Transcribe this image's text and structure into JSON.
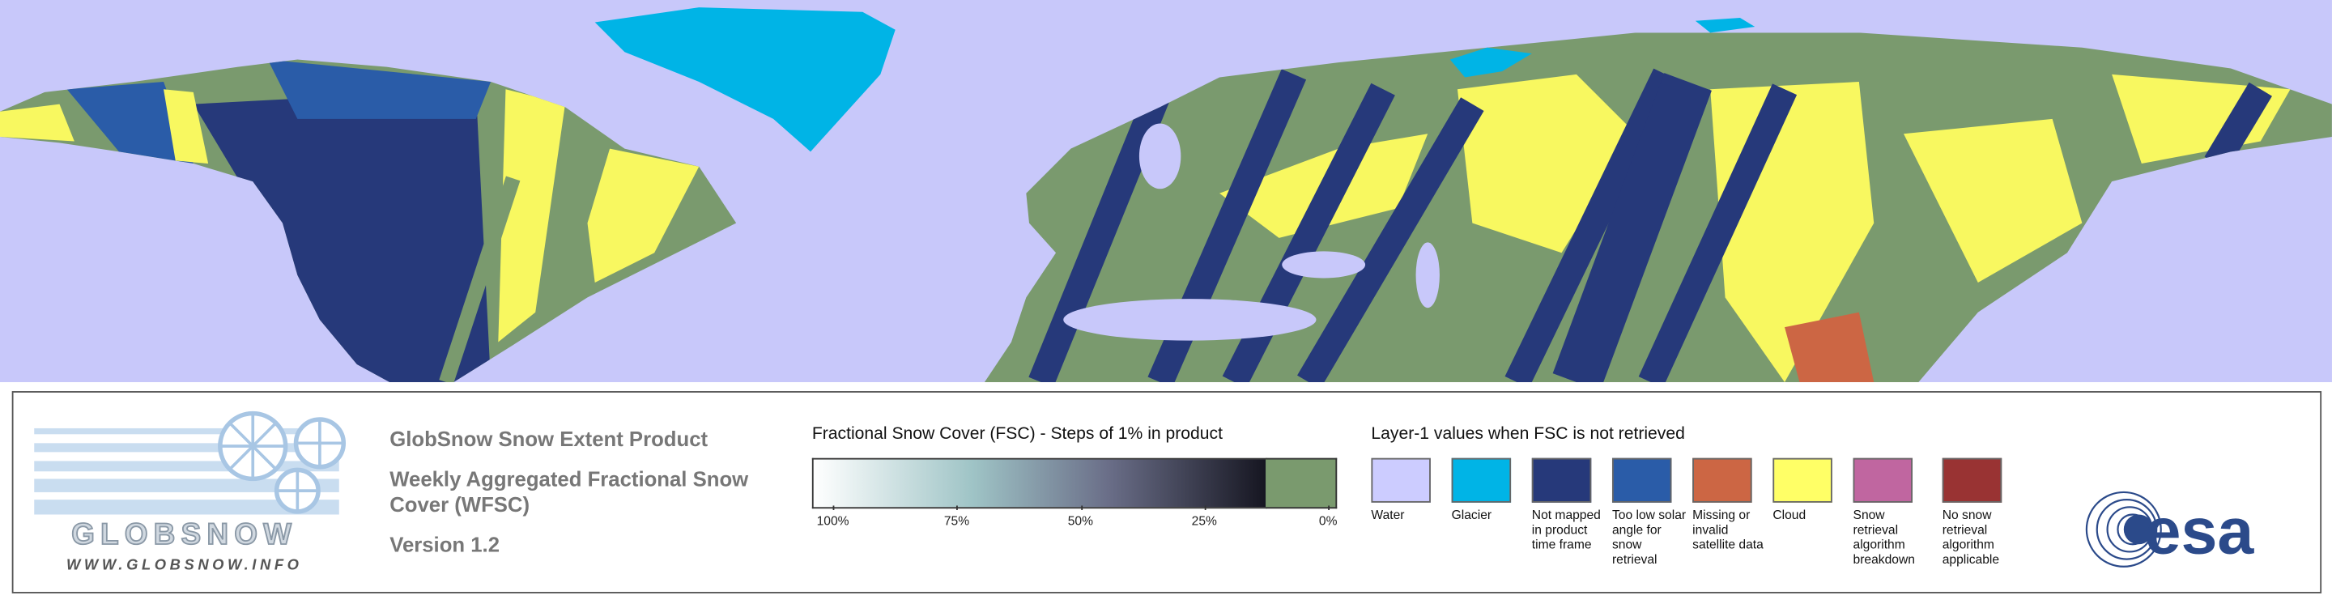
{
  "logo": {
    "name": "GLOBSNOW",
    "url": "WWW.GLOBSNOW.INFO"
  },
  "product": {
    "title": "GlobSnow Snow Extent Product",
    "subtitle": "Weekly Aggregated Fractional Snow Cover (WFSC)",
    "version": "Version 1.2"
  },
  "colorbar": {
    "title": "Fractional Snow Cover (FSC) - Steps of 1% in product",
    "xlim": [
      100,
      0
    ],
    "ticks": [
      {
        "value": 100,
        "label": "100%"
      },
      {
        "value": 75,
        "label": "75%"
      },
      {
        "value": 50,
        "label": "50%"
      },
      {
        "value": 25,
        "label": "25%"
      },
      {
        "value": 0,
        "label": "0%"
      }
    ],
    "zero_color": "#7a9a6e"
  },
  "layer1": {
    "title": "Layer-1 values when FSC is not retrieved",
    "items": [
      {
        "label": "Water",
        "color": "#ccccff"
      },
      {
        "label": "Glacier",
        "color": "#00b4e6"
      },
      {
        "label": "Not mapped in product time frame",
        "color": "#26397a"
      },
      {
        "label": "Too low solar angle for snow retrieval",
        "color": "#2a5ca8"
      },
      {
        "label": "Missing or invalid satellite data",
        "color": "#cc6644"
      },
      {
        "label": "Cloud",
        "color": "#ffff66"
      },
      {
        "label": "Snow retrieval algorithm breakdown",
        "color": "#c066a0"
      },
      {
        "label": "No snow retrieval algorithm applicable",
        "color": "#993333"
      }
    ]
  },
  "esa": "esa"
}
